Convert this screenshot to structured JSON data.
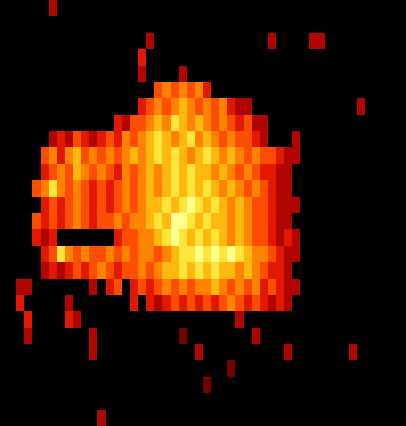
{
  "chart_data": {
    "type": "heatmap",
    "tick_labels": false,
    "zlim": [
      0,
      9
    ],
    "z": [
      [
        0,
        0,
        0,
        0,
        0,
        0,
        3,
        0,
        0,
        0,
        0,
        0,
        0,
        0,
        0,
        0,
        0,
        0,
        0,
        0,
        0,
        0,
        0,
        0,
        0,
        0,
        0,
        0,
        0,
        0,
        0,
        0,
        0,
        0,
        0,
        0,
        0,
        0,
        0,
        0,
        0,
        0,
        0,
        0,
        0,
        0,
        0,
        0,
        0,
        0
      ],
      [
        0,
        0,
        0,
        0,
        0,
        0,
        0,
        0,
        0,
        0,
        0,
        0,
        0,
        0,
        0,
        0,
        0,
        0,
        0,
        0,
        0,
        0,
        0,
        0,
        0,
        0,
        0,
        0,
        0,
        0,
        0,
        0,
        0,
        0,
        0,
        0,
        0,
        0,
        0,
        0,
        0,
        0,
        0,
        0,
        0,
        0,
        0,
        0,
        0,
        0
      ],
      [
        0,
        0,
        0,
        0,
        0,
        0,
        0,
        0,
        0,
        0,
        0,
        0,
        0,
        0,
        0,
        0,
        0,
        0,
        3,
        0,
        0,
        0,
        0,
        0,
        0,
        0,
        0,
        0,
        0,
        0,
        0,
        0,
        0,
        3,
        0,
        0,
        0,
        0,
        3,
        3,
        0,
        0,
        0,
        0,
        0,
        0,
        0,
        0,
        0,
        0
      ],
      [
        0,
        0,
        0,
        0,
        0,
        0,
        0,
        0,
        0,
        0,
        0,
        0,
        0,
        0,
        0,
        0,
        0,
        4,
        0,
        0,
        0,
        0,
        0,
        0,
        0,
        0,
        0,
        0,
        0,
        0,
        0,
        0,
        0,
        0,
        0,
        0,
        0,
        0,
        0,
        0,
        0,
        0,
        0,
        0,
        0,
        0,
        0,
        0,
        0,
        0
      ],
      [
        0,
        0,
        0,
        0,
        0,
        0,
        0,
        0,
        0,
        0,
        0,
        0,
        0,
        0,
        0,
        0,
        0,
        3,
        0,
        0,
        0,
        0,
        3,
        0,
        0,
        0,
        0,
        0,
        0,
        0,
        0,
        0,
        0,
        0,
        0,
        0,
        0,
        0,
        0,
        0,
        0,
        0,
        0,
        0,
        0,
        0,
        0,
        0,
        0,
        0
      ],
      [
        0,
        0,
        0,
        0,
        0,
        0,
        0,
        0,
        0,
        0,
        0,
        0,
        0,
        0,
        0,
        0,
        0,
        0,
        0,
        5,
        6,
        5,
        6,
        5,
        6,
        4,
        0,
        0,
        0,
        0,
        0,
        0,
        0,
        0,
        0,
        0,
        0,
        0,
        0,
        0,
        0,
        0,
        0,
        0,
        0,
        0,
        0,
        0,
        0,
        0
      ],
      [
        0,
        0,
        0,
        0,
        0,
        0,
        0,
        0,
        0,
        0,
        0,
        0,
        0,
        0,
        0,
        0,
        0,
        4,
        5,
        6,
        5,
        6,
        7,
        6,
        5,
        6,
        5,
        6,
        4,
        3,
        3,
        0,
        0,
        0,
        0,
        0,
        0,
        0,
        0,
        0,
        0,
        0,
        0,
        0,
        3,
        0,
        0,
        0,
        0,
        0
      ],
      [
        0,
        0,
        0,
        0,
        0,
        0,
        0,
        0,
        0,
        0,
        0,
        0,
        0,
        0,
        4,
        3,
        5,
        5,
        6,
        7,
        6,
        8,
        7,
        6,
        7,
        6,
        5,
        6,
        5,
        4,
        5,
        3,
        3,
        0,
        0,
        0,
        0,
        0,
        0,
        0,
        0,
        0,
        0,
        0,
        0,
        0,
        0,
        0,
        0,
        0
      ],
      [
        0,
        0,
        0,
        0,
        0,
        0,
        3,
        4,
        3,
        5,
        4,
        3,
        4,
        5,
        4,
        6,
        5,
        6,
        7,
        8,
        7,
        6,
        7,
        8,
        6,
        7,
        6,
        5,
        6,
        5,
        5,
        4,
        3,
        0,
        0,
        0,
        3,
        0,
        0,
        0,
        0,
        0,
        0,
        0,
        0,
        0,
        0,
        0,
        0,
        0
      ],
      [
        0,
        0,
        0,
        0,
        0,
        5,
        6,
        4,
        6,
        7,
        5,
        6,
        5,
        6,
        5,
        6,
        7,
        6,
        7,
        8,
        7,
        8,
        7,
        6,
        7,
        8,
        7,
        6,
        7,
        6,
        5,
        6,
        5,
        5,
        4,
        3,
        3,
        0,
        0,
        0,
        0,
        0,
        0,
        0,
        0,
        0,
        0,
        0,
        0,
        0
      ],
      [
        0,
        0,
        0,
        0,
        0,
        4,
        5,
        6,
        5,
        7,
        6,
        5,
        6,
        5,
        4,
        6,
        5,
        6,
        7,
        6,
        7,
        8,
        7,
        8,
        7,
        7,
        6,
        7,
        6,
        5,
        6,
        5,
        4,
        4,
        3,
        3,
        0,
        0,
        0,
        0,
        0,
        0,
        0,
        0,
        0,
        0,
        0,
        0,
        0,
        0
      ],
      [
        0,
        0,
        0,
        0,
        5,
        6,
        8,
        6,
        5,
        6,
        5,
        4,
        5,
        4,
        5,
        6,
        5,
        6,
        7,
        6,
        7,
        8,
        7,
        8,
        7,
        8,
        7,
        6,
        7,
        6,
        5,
        6,
        5,
        4,
        3,
        3,
        0,
        0,
        0,
        0,
        0,
        0,
        0,
        0,
        0,
        0,
        0,
        0,
        0,
        0
      ],
      [
        0,
        0,
        0,
        0,
        0,
        4,
        5,
        4,
        5,
        6,
        5,
        4,
        5,
        4,
        5,
        6,
        5,
        6,
        7,
        7,
        8,
        7,
        8,
        9,
        8,
        7,
        8,
        7,
        6,
        7,
        6,
        5,
        5,
        4,
        3,
        3,
        3,
        0,
        0,
        0,
        0,
        0,
        0,
        0,
        0,
        0,
        0,
        0,
        0,
        0
      ],
      [
        0,
        0,
        0,
        0,
        5,
        4,
        5,
        4,
        5,
        6,
        5,
        4,
        5,
        5,
        6,
        5,
        6,
        6,
        7,
        8,
        7,
        9,
        9,
        8,
        7,
        8,
        7,
        7,
        6,
        7,
        6,
        5,
        5,
        4,
        3,
        3,
        0,
        0,
        0,
        0,
        0,
        0,
        0,
        0,
        0,
        0,
        0,
        0,
        0,
        0
      ],
      [
        0,
        0,
        0,
        0,
        4,
        3,
        4,
        0,
        0,
        0,
        0,
        0,
        0,
        0,
        4,
        5,
        5,
        6,
        6,
        7,
        8,
        9,
        8,
        7,
        8,
        7,
        8,
        7,
        6,
        7,
        6,
        5,
        5,
        4,
        3,
        4,
        3,
        0,
        0,
        0,
        0,
        0,
        0,
        0,
        0,
        0,
        0,
        0,
        0,
        0
      ],
      [
        0,
        0,
        0,
        0,
        0,
        4,
        5,
        8,
        6,
        5,
        6,
        5,
        5,
        6,
        5,
        6,
        5,
        6,
        6,
        5,
        6,
        7,
        8,
        8,
        9,
        8,
        9,
        8,
        9,
        8,
        7,
        6,
        6,
        5,
        4,
        3,
        3,
        0,
        0,
        0,
        0,
        0,
        0,
        0,
        0,
        0,
        0,
        0,
        0,
        0
      ],
      [
        0,
        0,
        0,
        0,
        0,
        3,
        4,
        3,
        4,
        5,
        4,
        5,
        6,
        5,
        4,
        5,
        5,
        6,
        5,
        6,
        7,
        7,
        8,
        7,
        8,
        7,
        8,
        7,
        7,
        6,
        7,
        6,
        5,
        4,
        4,
        3,
        0,
        0,
        0,
        0,
        0,
        0,
        0,
        0,
        0,
        0,
        0,
        0,
        0,
        0
      ],
      [
        0,
        0,
        3,
        3,
        0,
        0,
        0,
        0,
        0,
        0,
        0,
        3,
        0,
        4,
        5,
        0,
        4,
        5,
        4,
        5,
        6,
        5,
        6,
        5,
        6,
        6,
        7,
        6,
        5,
        6,
        5,
        6,
        4,
        5,
        4,
        3,
        3,
        0,
        0,
        0,
        0,
        0,
        0,
        0,
        0,
        0,
        0,
        0,
        0,
        0
      ],
      [
        0,
        0,
        4,
        0,
        0,
        0,
        0,
        0,
        3,
        0,
        0,
        0,
        0,
        0,
        0,
        0,
        4,
        0,
        4,
        3,
        4,
        5,
        4,
        5,
        4,
        5,
        4,
        5,
        6,
        5,
        4,
        5,
        4,
        3,
        4,
        3,
        0,
        0,
        0,
        0,
        0,
        0,
        0,
        0,
        0,
        0,
        0,
        0,
        0,
        0
      ],
      [
        0,
        0,
        0,
        4,
        0,
        0,
        0,
        0,
        4,
        3,
        0,
        0,
        0,
        0,
        0,
        0,
        0,
        0,
        0,
        0,
        0,
        0,
        0,
        0,
        0,
        0,
        0,
        0,
        0,
        3,
        0,
        0,
        0,
        0,
        0,
        0,
        0,
        0,
        0,
        0,
        0,
        0,
        0,
        0,
        0,
        0,
        0,
        0,
        0,
        0
      ],
      [
        0,
        0,
        0,
        3,
        0,
        0,
        0,
        0,
        0,
        0,
        0,
        3,
        0,
        0,
        0,
        0,
        0,
        0,
        0,
        0,
        0,
        0,
        2,
        0,
        0,
        0,
        0,
        0,
        0,
        0,
        0,
        3,
        0,
        0,
        0,
        0,
        0,
        0,
        0,
        0,
        0,
        0,
        0,
        0,
        0,
        0,
        0,
        0,
        0,
        0
      ],
      [
        0,
        0,
        0,
        0,
        0,
        0,
        0,
        0,
        0,
        0,
        0,
        3,
        0,
        0,
        0,
        0,
        0,
        0,
        0,
        0,
        0,
        0,
        0,
        0,
        3,
        0,
        0,
        0,
        0,
        0,
        0,
        0,
        0,
        0,
        0,
        3,
        0,
        0,
        0,
        0,
        0,
        0,
        0,
        3,
        0,
        0,
        0,
        0,
        0,
        0
      ],
      [
        0,
        0,
        0,
        0,
        0,
        0,
        0,
        0,
        0,
        0,
        0,
        0,
        0,
        0,
        0,
        0,
        0,
        0,
        0,
        0,
        0,
        0,
        0,
        0,
        0,
        0,
        0,
        0,
        2,
        0,
        0,
        0,
        0,
        0,
        0,
        0,
        0,
        0,
        0,
        0,
        0,
        0,
        0,
        0,
        0,
        0,
        0,
        0,
        0,
        0
      ],
      [
        0,
        0,
        0,
        0,
        0,
        0,
        0,
        0,
        0,
        0,
        0,
        0,
        0,
        0,
        0,
        0,
        0,
        0,
        0,
        0,
        0,
        0,
        0,
        0,
        0,
        2,
        0,
        0,
        0,
        0,
        0,
        0,
        0,
        0,
        0,
        0,
        0,
        0,
        0,
        0,
        0,
        0,
        0,
        0,
        0,
        0,
        0,
        0,
        0,
        0
      ],
      [
        0,
        0,
        0,
        0,
        0,
        0,
        0,
        0,
        0,
        0,
        0,
        0,
        0,
        0,
        0,
        0,
        0,
        0,
        0,
        0,
        0,
        0,
        0,
        0,
        0,
        0,
        0,
        0,
        0,
        0,
        0,
        0,
        0,
        0,
        0,
        0,
        0,
        0,
        0,
        0,
        0,
        0,
        0,
        0,
        0,
        0,
        0,
        0,
        0,
        0
      ],
      [
        0,
        0,
        0,
        0,
        0,
        0,
        0,
        0,
        0,
        0,
        0,
        0,
        3,
        0,
        0,
        0,
        0,
        0,
        0,
        0,
        0,
        0,
        0,
        0,
        0,
        0,
        0,
        0,
        0,
        0,
        0,
        0,
        0,
        0,
        0,
        0,
        0,
        0,
        0,
        0,
        0,
        0,
        0,
        0,
        0,
        0,
        0,
        0,
        0,
        0
      ]
    ]
  }
}
